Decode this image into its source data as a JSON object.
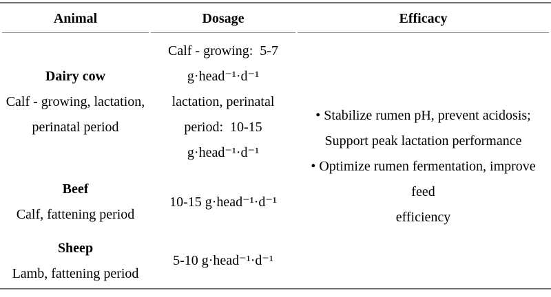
{
  "header": {
    "animal": "Animal",
    "dosage": "Dosage",
    "efficacy": "Efficacy"
  },
  "rows": {
    "dairy": {
      "name": "Dairy cow",
      "details": [
        "Calf - growing, lactation,",
        "perinatal period"
      ],
      "dosage_lines": [
        "Calf - growing:  5-7",
        "g·head⁻¹·d⁻¹",
        "lactation, perinatal",
        "period:  10-15",
        "g·head⁻¹·d⁻¹"
      ]
    },
    "beef": {
      "name": "Beef",
      "details": [
        "Calf, fattening period"
      ],
      "dosage_lines": [
        "10-15 g·head⁻¹·d⁻¹"
      ]
    },
    "sheep": {
      "name": "Sheep",
      "details": [
        "Lamb, fattening period"
      ],
      "dosage_lines": [
        "5-10 g·head⁻¹·d⁻¹"
      ]
    }
  },
  "efficacy": {
    "lines": [
      "• Stabilize rumen pH, prevent acidosis;",
      "Support peak lactation performance",
      "• Optimize rumen fermentation, improve feed",
      "efficiency"
    ]
  }
}
